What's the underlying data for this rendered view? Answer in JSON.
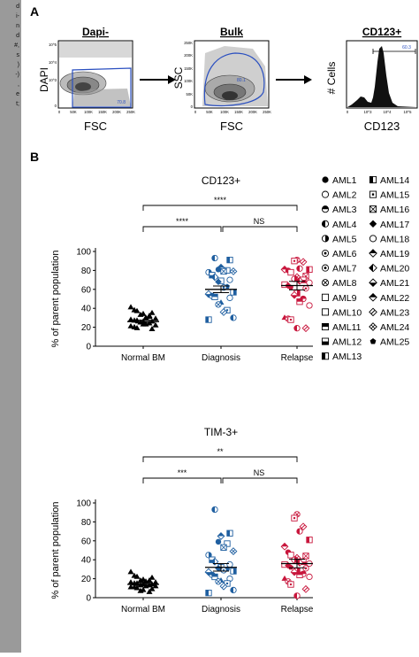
{
  "sidebar_snippets": [
    "d",
    "i-",
    "n",
    "d",
    "#,",
    "s",
    ")",
    "-)",
    ",",
    "e",
    "t;"
  ],
  "panel_a": {
    "letter": "A",
    "plots": [
      {
        "title": "Dapi-",
        "ylabel": "DAPI",
        "xlabel": "FSC",
        "gate_value": "70.8",
        "yticks": [
          "10^5",
          "10^4",
          "10^3",
          "0"
        ],
        "xticks": [
          "0",
          "50K",
          "100K",
          "150K",
          "200K",
          "250K"
        ]
      },
      {
        "title": "Bulk",
        "ylabel": "SSC",
        "xlabel": "FSC",
        "gate_value": "80.1",
        "yticks": [
          "250K",
          "200K",
          "150K",
          "100K",
          "50K",
          "0"
        ],
        "xticks": [
          "0",
          "50K",
          "100K",
          "150K",
          "200K",
          "250K"
        ]
      },
      {
        "title": "CD123+",
        "ylabel": "# Cells",
        "xlabel": "CD123",
        "gate_value": "60.3",
        "xticks": [
          "0",
          "10^3",
          "10^4",
          "10^5"
        ]
      }
    ]
  },
  "panel_b": {
    "letter": "B",
    "group_labels": [
      "Normal BM",
      "Diagnosis",
      "Relapse"
    ],
    "legend": [
      "AML1",
      "AML2",
      "AML3",
      "AML4",
      "AML5",
      "AML6",
      "AML7",
      "AML8",
      "AML9",
      "AML10",
      "AML11",
      "AML12",
      "AML13",
      "AML14",
      "AML15",
      "AML16",
      "AML17",
      "AML18",
      "AML19",
      "AML20",
      "AML21",
      "AML22",
      "AML23",
      "AML24",
      "AML25"
    ],
    "colors": {
      "normal": "#000000",
      "diagnosis": "#1f5fa0",
      "relapse": "#c8163c"
    }
  },
  "chart_data": [
    {
      "type": "scatter",
      "title": "CD123+",
      "ylabel": "% of parent population",
      "ylim": [
        0,
        100
      ],
      "yticks": [
        "0",
        "20",
        "40",
        "60",
        "80",
        "100"
      ],
      "categories": [
        "Normal BM",
        "Diagnosis",
        "Relapse"
      ],
      "series": [
        {
          "name": "Normal BM",
          "values": [
            41,
            38,
            37,
            35,
            34,
            33,
            31,
            30,
            29,
            28,
            27,
            27,
            26,
            26,
            25,
            24,
            23,
            22,
            21,
            20,
            19,
            18,
            23,
            25,
            32
          ]
        },
        {
          "name": "Diagnosis",
          "values": [
            93,
            91,
            83,
            81,
            80,
            79,
            79,
            78,
            75,
            73,
            70,
            69,
            68,
            63,
            62,
            57,
            55,
            53,
            52,
            51,
            46,
            44,
            38,
            36,
            30,
            28
          ]
        },
        {
          "name": "Relapse",
          "values": [
            91,
            90,
            89,
            82,
            81,
            81,
            80,
            78,
            74,
            73,
            71,
            70,
            69,
            67,
            65,
            64,
            62,
            61,
            56,
            54,
            50,
            47,
            43,
            30,
            29,
            28,
            19,
            19
          ]
        }
      ],
      "means": [
        26,
        60,
        64
      ],
      "sem": [
        1.5,
        3.5,
        4.5
      ],
      "significance": [
        {
          "pair": [
            "Normal BM",
            "Relapse"
          ],
          "label": "****"
        },
        {
          "pair": [
            "Normal BM",
            "Diagnosis"
          ],
          "label": "****"
        },
        {
          "pair": [
            "Diagnosis",
            "Relapse"
          ],
          "label": "NS"
        }
      ]
    },
    {
      "type": "scatter",
      "title": "TIM-3+",
      "ylabel": "% of parent population",
      "ylim": [
        0,
        100
      ],
      "yticks": [
        "0",
        "20",
        "40",
        "60",
        "80",
        "100"
      ],
      "categories": [
        "Normal BM",
        "Diagnosis",
        "Relapse"
      ],
      "series": [
        {
          "name": "Normal BM",
          "values": [
            27,
            23,
            22,
            21,
            19,
            18,
            18,
            17,
            16,
            16,
            15,
            15,
            14,
            14,
            13,
            13,
            12,
            12,
            11,
            11,
            10,
            9,
            8,
            7,
            6
          ]
        },
        {
          "name": "Diagnosis",
          "values": [
            93,
            68,
            65,
            59,
            57,
            53,
            49,
            45,
            40,
            38,
            35,
            32,
            31,
            30,
            29,
            28,
            27,
            24,
            22,
            20,
            18,
            17,
            15,
            12,
            8,
            5
          ]
        },
        {
          "name": "Relapse",
          "values": [
            88,
            84,
            75,
            70,
            61,
            54,
            48,
            45,
            44,
            42,
            40,
            38,
            37,
            36,
            35,
            34,
            32,
            31,
            28,
            27,
            25,
            24,
            22,
            20,
            17,
            14,
            9,
            2
          ]
        }
      ],
      "means": [
        14,
        32,
        36
      ],
      "sem": [
        1.2,
        4.0,
        4.5
      ],
      "significance": [
        {
          "pair": [
            "Normal BM",
            "Relapse"
          ],
          "label": "**"
        },
        {
          "pair": [
            "Normal BM",
            "Diagnosis"
          ],
          "label": "***"
        },
        {
          "pair": [
            "Diagnosis",
            "Relapse"
          ],
          "label": "NS"
        }
      ]
    }
  ]
}
